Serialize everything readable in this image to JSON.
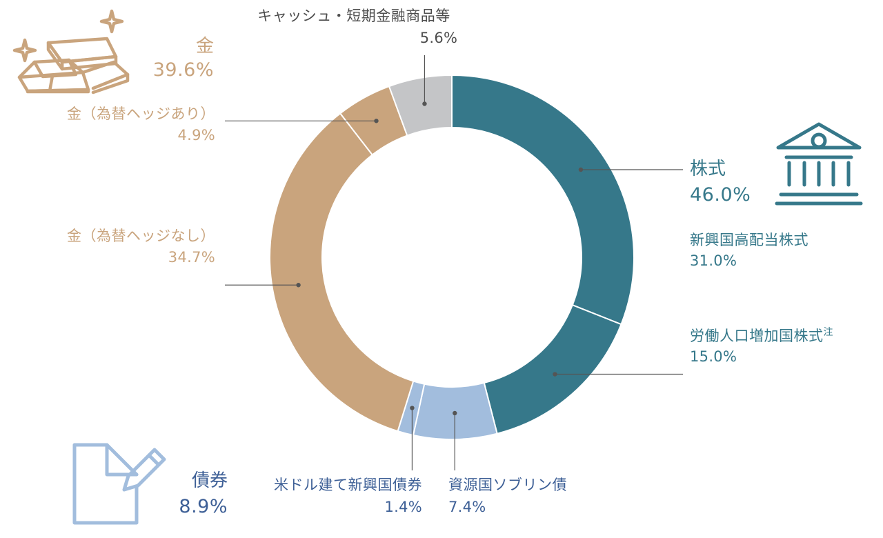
{
  "chart_data": {
    "type": "pie",
    "variant": "donut",
    "slices": [
      {
        "label": "新興国高配当株式",
        "value": 31.0,
        "value_label": "31.0%",
        "group": "stocks"
      },
      {
        "label": "労働人口増加国株式",
        "note_mark": "注",
        "value": 15.0,
        "value_label": "15.0%",
        "group": "stocks"
      },
      {
        "label": "資源国ソブリン債",
        "value": 7.4,
        "value_label": "7.4%",
        "group": "bonds"
      },
      {
        "label": "米ドル建て新興国債券",
        "value": 1.4,
        "value_label": "1.4%",
        "group": "bonds"
      },
      {
        "label": "金（為替ヘッジなし）",
        "value": 34.7,
        "value_label": "34.7%",
        "group": "gold"
      },
      {
        "label": "金（為替ヘッジあり）",
        "value": 4.9,
        "value_label": "4.9%",
        "group": "gold"
      },
      {
        "label": "キャッシュ・短期金融商品等",
        "value": 5.6,
        "value_label": "5.6%",
        "group": "cash"
      }
    ],
    "groups": [
      {
        "id": "stocks",
        "label": "株式",
        "value": 46.0,
        "value_label": "46.0%",
        "icon": "bank-building-icon"
      },
      {
        "id": "bonds",
        "label": "債券",
        "value": 8.9,
        "value_label": "8.9%",
        "icon": "document-pencil-icon"
      },
      {
        "id": "gold",
        "label": "金",
        "value": 39.6,
        "value_label": "39.6%",
        "icon": "gold-bars-icon"
      }
    ]
  },
  "colors": {
    "stocks": "#36788a",
    "bonds": "#a2bddd",
    "gold": "#c9a47d",
    "cash": "#c4c5c7",
    "bonds_text": "#3d5f96",
    "cash_text": "#4d4d4d",
    "leader": "#555555",
    "background": "#ffffff"
  }
}
